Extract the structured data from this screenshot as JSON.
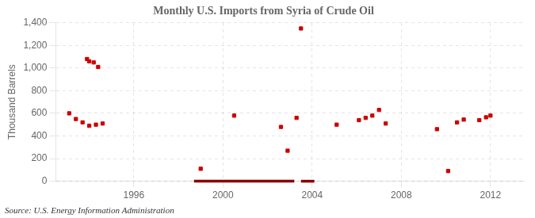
{
  "chart_data": {
    "type": "scatter",
    "title": "Monthly U.S. Imports from Syria of Crude Oil",
    "ylabel": "Thousand Barrels",
    "annotation": "Source: U.S. Energy Information Administration",
    "xlim": [
      1992.5,
      2013.5
    ],
    "xticks": [
      1996,
      2000,
      2004,
      2008,
      2012
    ],
    "ylim": [
      0,
      1400
    ],
    "yticks": [
      0,
      200,
      400,
      600,
      800,
      {
        "value": 1000,
        "label": "1,000"
      },
      {
        "value": 1200,
        "label": "1,200"
      },
      {
        "value": 1400,
        "label": "1,400"
      }
    ],
    "grid": true,
    "series": [
      {
        "type": "scatter",
        "color": "#cc0000",
        "marker": "square",
        "x": [
          1993.1,
          1993.4,
          1993.7,
          1994.0,
          1994.3,
          1994.6,
          1993.9,
          1994.0,
          1994.2,
          1994.4,
          1999.0,
          2000.5,
          2002.6,
          2002.9,
          2003.3,
          2003.5,
          2005.1,
          2006.1,
          2006.4,
          2006.7,
          2007.0,
          2007.3,
          2009.6,
          2010.5,
          2010.8,
          2010.1,
          2011.5,
          2011.8,
          2012.0
        ],
        "values": [
          600,
          550,
          520,
          490,
          500,
          510,
          1080,
          1060,
          1050,
          1010,
          110,
          580,
          480,
          270,
          560,
          1350,
          500,
          540,
          560,
          580,
          630,
          510,
          460,
          520,
          545,
          90,
          540,
          565,
          580
        ]
      },
      {
        "type": "line",
        "color": "#8b0000",
        "line_style": "solid",
        "x": [
          1998.7,
          2003.2
        ],
        "values": [
          0,
          0
        ]
      },
      {
        "type": "line",
        "color": "#8b0000",
        "line_style": "solid",
        "x": [
          2003.5,
          2004.1
        ],
        "values": [
          0,
          0
        ]
      }
    ]
  }
}
